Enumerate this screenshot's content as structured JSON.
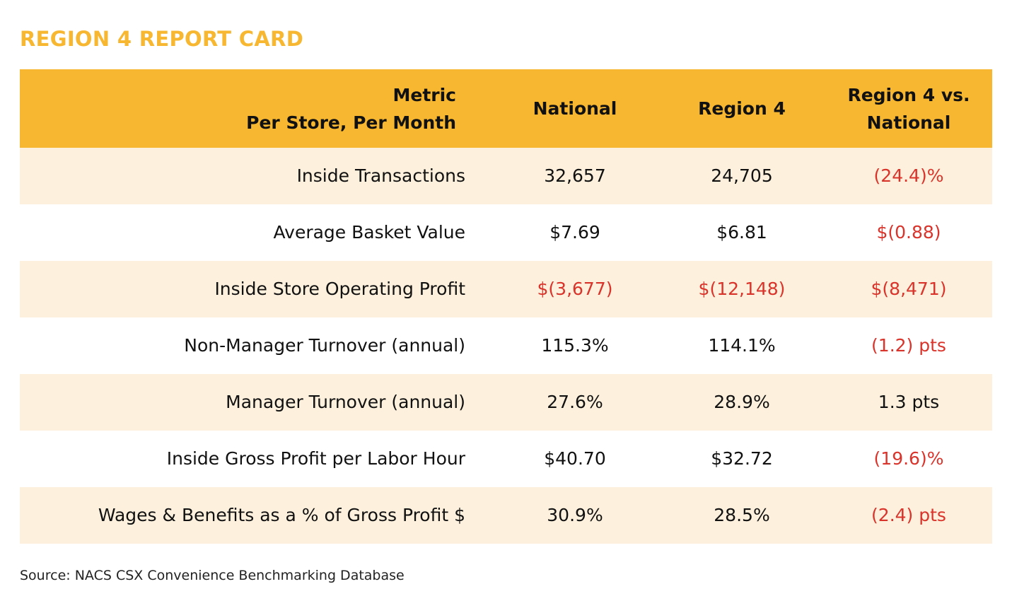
{
  "title": "REGION 4 REPORT CARD",
  "table": {
    "header": [
      [
        "Metric",
        "Per Store, Per Month"
      ],
      [
        "National"
      ],
      [
        "Region 4"
      ],
      [
        "Region 4 vs.",
        "National"
      ]
    ],
    "rows": [
      [
        "Inside Transactions",
        "32,657",
        "24,705",
        "(24.4)%"
      ],
      [
        "Average Basket Value",
        "$7.69",
        "$6.81",
        "$(0.88)"
      ],
      [
        "Inside Store Operating Profit",
        "$(3,677)",
        "$(12,148)",
        "$(8,471)"
      ],
      [
        "Non-Manager Turnover (annual)",
        "115.3%",
        "114.1%",
        "(1.2) pts"
      ],
      [
        "Manager Turnover (annual)",
        "27.6%",
        "28.9%",
        "1.3 pts"
      ],
      [
        "Inside Gross Profit per Labor Hour",
        "$40.70",
        "$32.72",
        "(19.6)%"
      ],
      [
        "Wages & Benefits as a % of Gross Profit $",
        "30.9%",
        "28.5%",
        "(2.4) pts"
      ]
    ]
  },
  "source": "Source:  NACS CSX Convenience Benchmarking Database"
}
